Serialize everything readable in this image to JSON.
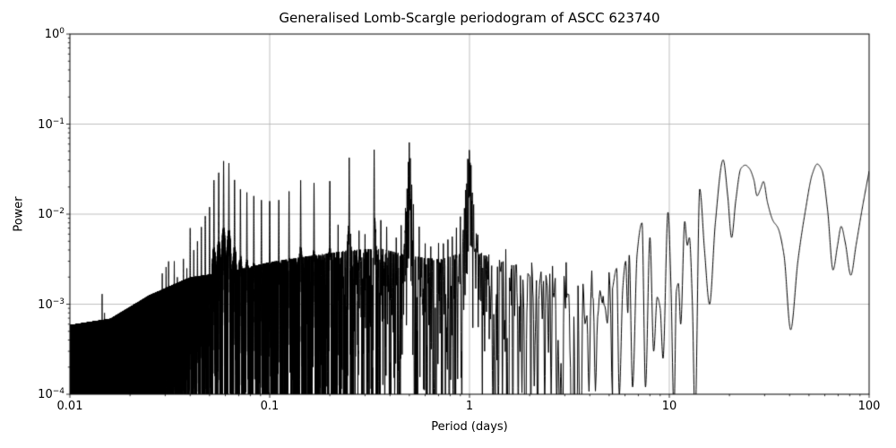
{
  "figure": {
    "title": "Generalised Lomb-Scargle periodogram of ASCC 623740",
    "background": "#ffffff"
  },
  "chart_data": {
    "type": "line",
    "title": "Generalised Lomb-Scargle periodogram of ASCC 623740",
    "xlabel": "Period (days)",
    "ylabel": "Power",
    "xscale": "log",
    "yscale": "log",
    "xlim": [
      0.01,
      100
    ],
    "ylim": [
      0.0001,
      1
    ],
    "grid": true,
    "grid_color": "#b0b0b0",
    "line_color": "#000000",
    "background_color": "#ffffff",
    "legend": null,
    "x_ticks": [
      {
        "value": 0.01,
        "label": "0.01"
      },
      {
        "value": 0.1,
        "label": "0.1"
      },
      {
        "value": 1,
        "label": "1"
      },
      {
        "value": 10,
        "label": "10"
      },
      {
        "value": 100,
        "label": "100"
      }
    ],
    "y_ticks": [
      {
        "value": 1,
        "base": "10",
        "exp": "0"
      },
      {
        "value": 0.1,
        "base": "10",
        "exp": "−1"
      },
      {
        "value": 0.01,
        "base": "10",
        "exp": "−2"
      },
      {
        "value": 0.001,
        "base": "10",
        "exp": "−3"
      },
      {
        "value": 0.0001,
        "base": "10",
        "exp": "−4"
      }
    ],
    "main_peaks": [
      {
        "period_days": 1.0,
        "power": 0.068
      },
      {
        "period_days": 0.5,
        "power": 0.065
      },
      {
        "period_days": 0.333,
        "power": 0.052
      },
      {
        "period_days": 0.25,
        "power": 0.043
      },
      {
        "period_days": 0.0588,
        "power": 0.039
      },
      {
        "period_days": 18.6,
        "power": 0.04
      },
      {
        "period_days": 55,
        "power": 0.036
      },
      {
        "period_days": 100,
        "power": 0.03
      }
    ],
    "noise_floor": 0.0001,
    "noise_envelope_top": [
      [
        0.01,
        0.00028
      ],
      [
        0.016,
        0.00033
      ],
      [
        0.025,
        0.0006
      ],
      [
        0.04,
        0.00095
      ],
      [
        0.063,
        0.0011
      ],
      [
        0.1,
        0.0014
      ],
      [
        0.16,
        0.00165
      ],
      [
        0.25,
        0.0019
      ],
      [
        0.355,
        0.002
      ],
      [
        0.5,
        0.00165
      ],
      [
        0.71,
        0.0015
      ],
      [
        1.0,
        0.0019
      ],
      [
        1.41,
        0.0015
      ],
      [
        2.0,
        0.0012
      ],
      [
        3.16,
        0.00095
      ],
      [
        5.2,
        0.0008
      ]
    ],
    "comb_spikes": [
      [
        0.029,
        0.0022
      ],
      [
        0.0303,
        0.0026
      ],
      [
        0.0312,
        0.003
      ],
      [
        0.0333,
        0.003
      ],
      [
        0.0345,
        0.002
      ],
      [
        0.037,
        0.0032
      ],
      [
        0.0385,
        0.0025
      ],
      [
        0.04,
        0.007
      ],
      [
        0.0417,
        0.004
      ],
      [
        0.0435,
        0.005
      ],
      [
        0.0455,
        0.0072
      ],
      [
        0.0476,
        0.0095
      ],
      [
        0.05,
        0.012
      ],
      [
        0.0526,
        0.024
      ],
      [
        0.0556,
        0.029
      ],
      [
        0.0588,
        0.039
      ],
      [
        0.0625,
        0.037
      ],
      [
        0.0667,
        0.024
      ],
      [
        0.0714,
        0.019
      ],
      [
        0.0769,
        0.0175
      ],
      [
        0.0833,
        0.016
      ],
      [
        0.0909,
        0.0145
      ],
      [
        0.1,
        0.014
      ],
      [
        0.1111,
        0.0145
      ],
      [
        0.125,
        0.018
      ],
      [
        0.1429,
        0.024
      ],
      [
        0.1667,
        0.0225
      ],
      [
        0.2,
        0.0235
      ],
      [
        0.25,
        0.043
      ],
      [
        0.3333,
        0.052
      ]
    ],
    "cluster_spikes": [
      [
        0.478,
        0.012
      ],
      [
        0.487,
        0.022
      ],
      [
        0.494,
        0.038
      ],
      [
        0.4995,
        0.065
      ],
      [
        0.5055,
        0.042
      ],
      [
        0.514,
        0.024
      ],
      [
        0.524,
        0.013
      ],
      [
        0.943,
        0.012
      ],
      [
        0.956,
        0.02
      ],
      [
        0.968,
        0.028
      ],
      [
        0.98,
        0.042
      ],
      [
        0.991,
        0.052
      ],
      [
        0.9985,
        0.068
      ],
      [
        1.007,
        0.048
      ],
      [
        1.018,
        0.035
      ],
      [
        1.032,
        0.022
      ],
      [
        1.05,
        0.013
      ]
    ],
    "cluster_pedestals": [
      [
        0.5,
        0.008,
        0.035
      ],
      [
        1.0,
        0.011,
        0.045
      ]
    ],
    "extra_spikes": [
      [
        0.0145,
        0.0013
      ],
      [
        0.0149,
        0.0008
      ],
      [
        0.0205,
        0.00035
      ],
      [
        0.024,
        0.0004
      ],
      [
        0.027,
        0.00045
      ],
      [
        0.22,
        0.008
      ],
      [
        0.28,
        0.007
      ],
      [
        0.3,
        0.0065
      ],
      [
        0.36,
        0.009
      ],
      [
        0.385,
        0.008
      ],
      [
        0.43,
        0.006
      ],
      [
        0.455,
        0.008
      ],
      [
        0.56,
        0.008
      ],
      [
        0.6,
        0.005
      ],
      [
        0.64,
        0.0045
      ],
      [
        0.7,
        0.005
      ],
      [
        0.74,
        0.006
      ],
      [
        0.78,
        0.0055
      ],
      [
        0.82,
        0.007
      ],
      [
        0.86,
        0.008
      ],
      [
        0.9,
        0.012
      ],
      [
        1.1,
        0.008
      ],
      [
        1.15,
        0.005
      ],
      [
        1.25,
        0.004
      ],
      [
        1.38,
        0.003
      ],
      [
        1.52,
        0.005
      ],
      [
        1.63,
        0.0045
      ],
      [
        1.8,
        0.0035
      ],
      [
        2.05,
        0.0042
      ],
      [
        2.35,
        0.003
      ],
      [
        2.6,
        0.0035
      ],
      [
        3.05,
        0.0045
      ],
      [
        3.5,
        0.003
      ],
      [
        4.1,
        0.0035
      ],
      [
        4.65,
        0.0028
      ],
      [
        5.0,
        0.003
      ]
    ],
    "smooth_segment": [
      [
        5.2,
        0.0015
      ],
      [
        5.45,
        0.0025
      ],
      [
        5.62,
        0.0001
      ],
      [
        5.85,
        0.0015
      ],
      [
        6.05,
        0.003
      ],
      [
        6.2,
        0.0008
      ],
      [
        6.3,
        0.0035
      ],
      [
        6.55,
        0.00012
      ],
      [
        6.9,
        0.0036
      ],
      [
        7.3,
        0.008
      ],
      [
        7.6,
        0.00012
      ],
      [
        8.0,
        0.0055
      ],
      [
        8.35,
        0.0003
      ],
      [
        8.7,
        0.0012
      ],
      [
        9.0,
        0.0009
      ],
      [
        9.3,
        0.00025
      ],
      [
        9.85,
        0.0105
      ],
      [
        10.2,
        0.0015
      ],
      [
        10.55,
        6e-05
      ],
      [
        10.85,
        0.0014
      ],
      [
        11.1,
        0.0017
      ],
      [
        11.4,
        0.0006
      ],
      [
        11.95,
        0.0083
      ],
      [
        12.3,
        0.0045
      ],
      [
        12.6,
        0.0055
      ],
      [
        13.05,
        0.001
      ],
      [
        13.45,
        5e-05
      ],
      [
        14.2,
        0.019
      ],
      [
        15.0,
        0.004
      ],
      [
        15.9,
        0.001
      ],
      [
        17.0,
        0.008
      ],
      [
        18.6,
        0.04
      ],
      [
        19.6,
        0.016
      ],
      [
        20.5,
        0.0055
      ],
      [
        21.5,
        0.014
      ],
      [
        22.8,
        0.032
      ],
      [
        24.0,
        0.035
      ],
      [
        25.2,
        0.032
      ],
      [
        26.5,
        0.024
      ],
      [
        27.5,
        0.016
      ],
      [
        28.6,
        0.019
      ],
      [
        29.6,
        0.023
      ],
      [
        31.0,
        0.0135
      ],
      [
        33.0,
        0.0085
      ],
      [
        35.0,
        0.007
      ],
      [
        37.5,
        0.0035
      ],
      [
        40.5,
        0.00052
      ],
      [
        44.0,
        0.003
      ],
      [
        48.0,
        0.011
      ],
      [
        52.0,
        0.028
      ],
      [
        55.0,
        0.036
      ],
      [
        58.0,
        0.031
      ],
      [
        62.0,
        0.011
      ],
      [
        66.0,
        0.0024
      ],
      [
        69.5,
        0.0045
      ],
      [
        72.5,
        0.0073
      ],
      [
        76.0,
        0.0048
      ],
      [
        81.0,
        0.0021
      ],
      [
        86.0,
        0.0045
      ],
      [
        92.0,
        0.011
      ],
      [
        100.0,
        0.03
      ]
    ]
  }
}
